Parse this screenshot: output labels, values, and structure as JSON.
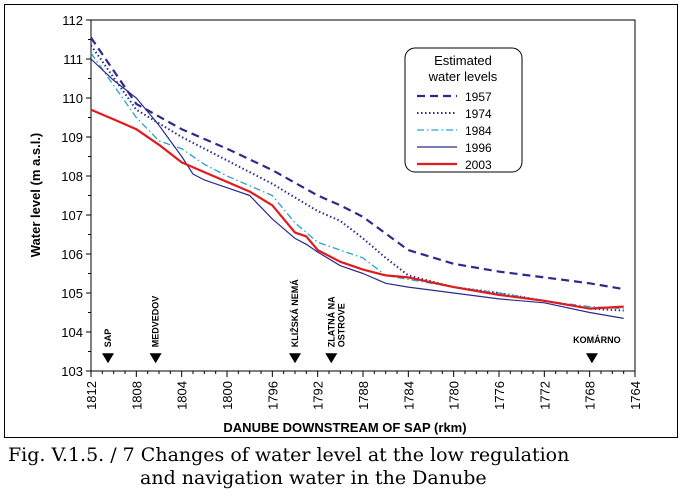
{
  "chart_data": {
    "type": "line",
    "xlabel": "DANUBE DOWNSTREAM OF SAP (rkm)",
    "ylabel": "Water level  (m a.s.l.)",
    "xlim": [
      1812,
      1764
    ],
    "ylim": [
      103,
      112
    ],
    "x_ticks": [
      1812,
      1808,
      1804,
      1800,
      1796,
      1792,
      1788,
      1784,
      1780,
      1776,
      1772,
      1768,
      1764
    ],
    "y_ticks": [
      103,
      104,
      105,
      106,
      107,
      108,
      109,
      110,
      111,
      112
    ],
    "legend": {
      "title": "Estimated water levels",
      "position": "top-right"
    },
    "locations": [
      {
        "label": "SAP",
        "rkm": 1810.5
      },
      {
        "label": "MEDVEDOV",
        "rkm": 1806.3
      },
      {
        "label": "KLIŽSKÁ NEMÁ",
        "rkm": 1794.0
      },
      {
        "label": "ZLATNÁ NA OSTROVE",
        "rkm": 1790.8
      },
      {
        "label": "KOMÁRNO",
        "rkm": 1767.8
      }
    ],
    "series": [
      {
        "name": "1957",
        "color": "#2b2b8c",
        "dash": "long-dash",
        "x": [
          1812,
          1808,
          1804,
          1800,
          1796,
          1792,
          1790,
          1788,
          1784,
          1780,
          1776,
          1772,
          1768,
          1765
        ],
        "y": [
          111.55,
          109.85,
          109.2,
          108.7,
          108.15,
          107.5,
          107.25,
          106.95,
          106.1,
          105.75,
          105.55,
          105.4,
          105.25,
          105.1
        ]
      },
      {
        "name": "1974",
        "color": "#2b2b8c",
        "dash": "dotted",
        "x": [
          1812,
          1808,
          1804,
          1800,
          1796,
          1792,
          1790,
          1788,
          1786,
          1784,
          1780,
          1776,
          1772,
          1768,
          1765
        ],
        "y": [
          111.35,
          109.7,
          109.0,
          108.4,
          107.8,
          107.1,
          106.85,
          106.4,
          105.9,
          105.45,
          105.15,
          105.0,
          104.8,
          104.6,
          104.55
        ]
      },
      {
        "name": "1984",
        "color": "#29a3c9",
        "dash": "dash-dot",
        "x": [
          1812,
          1808,
          1806,
          1804,
          1802,
          1800,
          1796,
          1794,
          1792,
          1790,
          1788,
          1786,
          1784,
          1780,
          1776,
          1772,
          1768,
          1765
        ],
        "y": [
          111.15,
          109.5,
          108.9,
          108.7,
          108.3,
          108.0,
          107.5,
          106.8,
          106.3,
          106.1,
          105.9,
          105.45,
          105.35,
          105.15,
          105.0,
          104.8,
          104.65,
          104.6
        ]
      },
      {
        "name": "1996",
        "color": "#2b2b8c",
        "dash": "solid",
        "x": [
          1812,
          1810,
          1808,
          1806,
          1804,
          1803,
          1802,
          1800,
          1798,
          1796,
          1794,
          1793,
          1792,
          1790,
          1788,
          1786,
          1784,
          1780,
          1776,
          1772,
          1768,
          1765
        ],
        "y": [
          111.0,
          110.45,
          110.0,
          109.3,
          108.5,
          108.05,
          107.9,
          107.7,
          107.5,
          106.9,
          106.4,
          106.25,
          106.05,
          105.7,
          105.5,
          105.25,
          105.15,
          105.0,
          104.85,
          104.75,
          104.5,
          104.35
        ]
      },
      {
        "name": "2003",
        "color": "#e01b1b",
        "dash": "solid",
        "x": [
          1812,
          1810,
          1808,
          1806,
          1804,
          1802,
          1800,
          1798,
          1796,
          1794,
          1793,
          1792,
          1790,
          1788,
          1786,
          1784,
          1780,
          1776,
          1772,
          1768,
          1765
        ],
        "y": [
          109.7,
          109.45,
          109.2,
          108.8,
          108.35,
          108.1,
          107.85,
          107.6,
          107.25,
          106.55,
          106.45,
          106.1,
          105.8,
          105.6,
          105.45,
          105.4,
          105.15,
          104.95,
          104.8,
          104.6,
          104.65
        ]
      }
    ]
  },
  "caption": {
    "line1": "Fig. V.1.5. / 7  Changes of water level at the low regulation",
    "line2": "and navigation water in the Danube"
  }
}
